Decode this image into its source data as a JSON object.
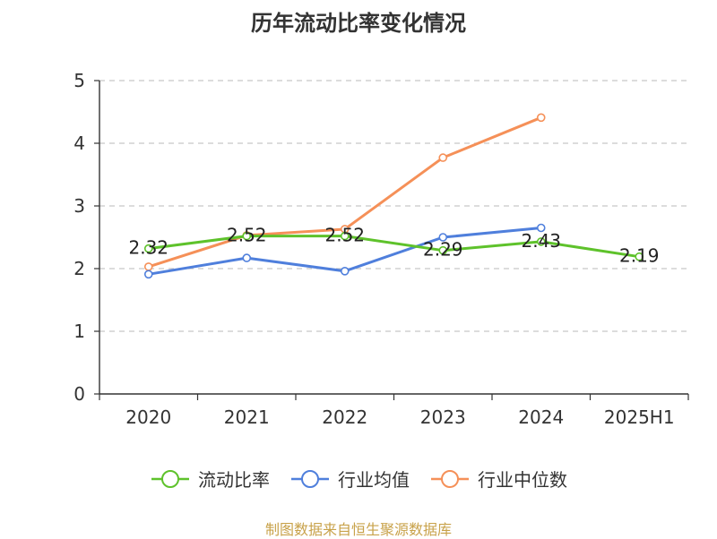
{
  "chart_data": {
    "type": "line",
    "title": "历年流动比率变化情况",
    "categories": [
      "2020",
      "2021",
      "2022",
      "2023",
      "2024",
      "2025H1"
    ],
    "yticks": [
      "0",
      "1",
      "2",
      "3",
      "4",
      "5"
    ],
    "ylim": [
      0,
      5
    ],
    "grid": true,
    "legend_position": "bottom",
    "series": [
      {
        "name": "流动比率",
        "color": "#5ec22b",
        "values": [
          2.32,
          2.52,
          2.52,
          2.29,
          2.43,
          2.19
        ],
        "labels": [
          "2.32",
          "2.52",
          "2.52",
          "2.29",
          "2.43",
          "2.19"
        ]
      },
      {
        "name": "行业均值",
        "color": "#4f7fdc",
        "values": [
          1.91,
          2.17,
          1.96,
          2.5,
          2.65,
          null
        ]
      },
      {
        "name": "行业中位数",
        "color": "#f59058",
        "values": [
          2.03,
          2.53,
          2.63,
          3.77,
          4.41,
          null
        ]
      }
    ]
  },
  "footer": {
    "source": "制图数据来自恒生聚源数据库"
  }
}
